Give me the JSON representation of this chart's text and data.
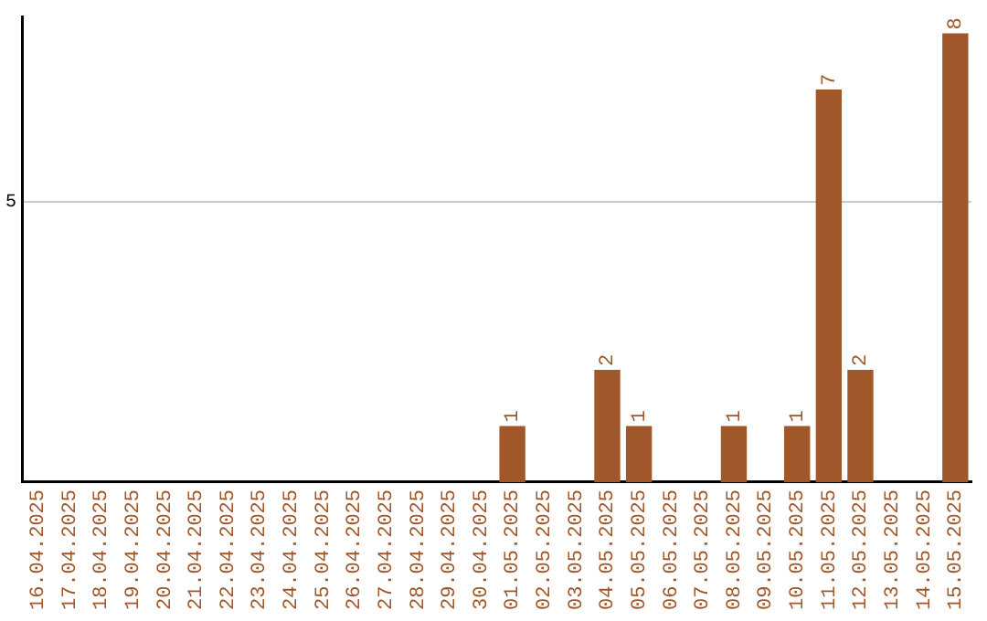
{
  "chart_data": {
    "type": "bar",
    "categories": [
      "16.04.2025",
      "17.04.2025",
      "18.04.2025",
      "19.04.2025",
      "20.04.2025",
      "21.04.2025",
      "22.04.2025",
      "23.04.2025",
      "24.04.2025",
      "25.04.2025",
      "26.04.2025",
      "27.04.2025",
      "28.04.2025",
      "29.04.2025",
      "30.04.2025",
      "01.05.2025",
      "02.05.2025",
      "03.05.2025",
      "04.05.2025",
      "05.05.2025",
      "06.05.2025",
      "07.05.2025",
      "08.05.2025",
      "09.05.2025",
      "10.05.2025",
      "11.05.2025",
      "12.05.2025",
      "13.05.2025",
      "14.05.2025",
      "15.05.2025"
    ],
    "values": [
      null,
      null,
      null,
      null,
      null,
      null,
      null,
      null,
      null,
      null,
      null,
      null,
      null,
      null,
      null,
      1,
      null,
      null,
      2,
      1,
      null,
      null,
      1,
      null,
      1,
      7,
      2,
      null,
      null,
      8
    ],
    "value_labels": [
      null,
      null,
      null,
      null,
      null,
      null,
      null,
      null,
      null,
      null,
      null,
      null,
      null,
      null,
      null,
      "1",
      null,
      null,
      "2",
      "1",
      null,
      null,
      "1",
      null,
      "1",
      "7",
      "2",
      null,
      null,
      "8"
    ],
    "color": "#a0572a",
    "ylim": [
      0,
      8.3
    ],
    "yticks": [
      5
    ],
    "grid": "y",
    "legend": false
  }
}
